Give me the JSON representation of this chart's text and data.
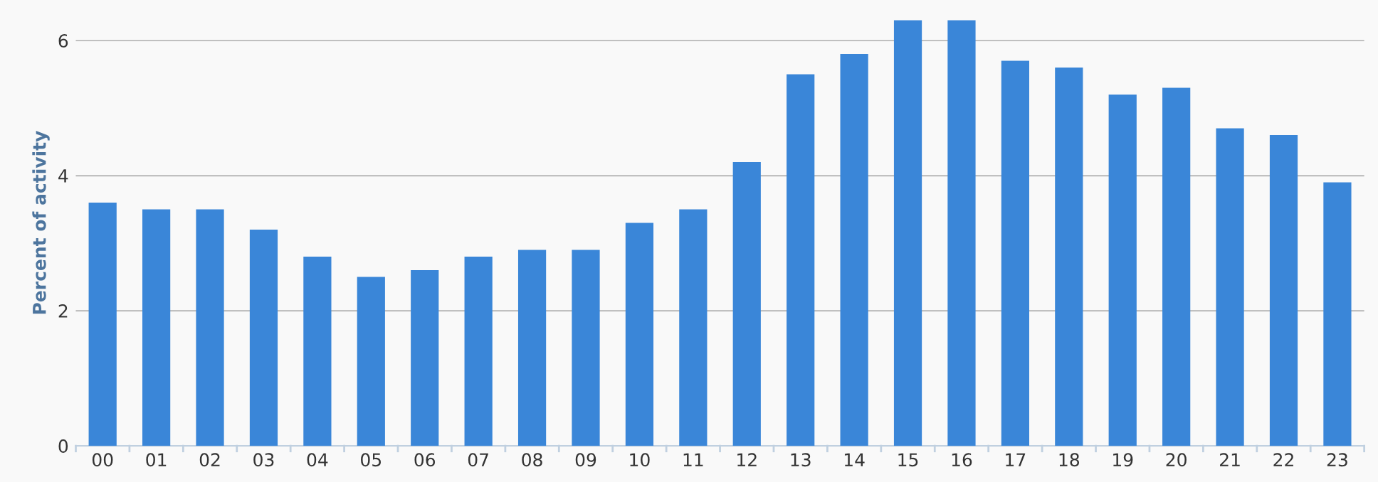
{
  "chart_data": {
    "type": "bar",
    "ylabel": "Percent of activity",
    "categories": [
      "00",
      "01",
      "02",
      "03",
      "04",
      "05",
      "06",
      "07",
      "08",
      "09",
      "10",
      "11",
      "12",
      "13",
      "14",
      "15",
      "16",
      "17",
      "18",
      "19",
      "20",
      "21",
      "22",
      "23"
    ],
    "values": [
      3.6,
      3.5,
      3.5,
      3.2,
      2.8,
      2.5,
      2.6,
      2.8,
      2.9,
      2.9,
      3.3,
      3.5,
      4.2,
      5.5,
      5.8,
      6.3,
      6.3,
      5.7,
      5.6,
      5.2,
      5.3,
      4.7,
      4.6,
      3.9
    ],
    "color": "#3a86d8",
    "ylim": [
      0,
      6.6
    ],
    "yticks": [
      0,
      2,
      4,
      6
    ],
    "grid": "y",
    "legend": false
  }
}
